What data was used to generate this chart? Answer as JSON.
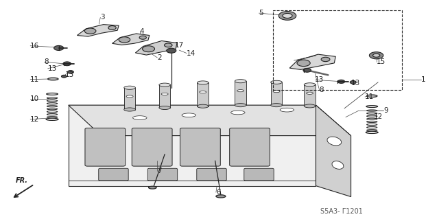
{
  "background_color": "#ffffff",
  "part_code": "S5A3- Γ1201",
  "fig_width": 6.4,
  "fig_height": 3.19,
  "dpi": 100,
  "label_fontsize": 7.5,
  "part_code_fontsize": 7.0
}
